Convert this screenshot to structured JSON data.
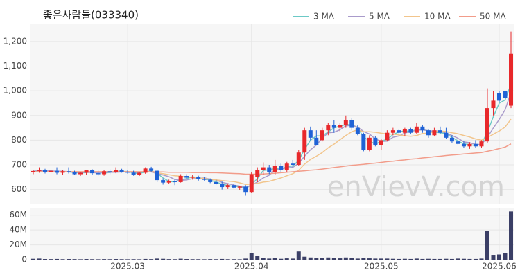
{
  "chart_data": {
    "type": "candlestick",
    "title": "좋은사람들(033340)",
    "watermark": "enVievV.com",
    "categories": [
      null,
      null,
      null,
      null,
      null,
      null,
      null,
      null,
      null,
      null,
      null,
      null,
      null,
      null,
      null,
      null,
      "2025.03",
      null,
      null,
      null,
      null,
      null,
      null,
      null,
      null,
      null,
      null,
      null,
      null,
      null,
      null,
      null,
      null,
      null,
      null,
      null,
      null,
      "2025.04",
      null,
      null,
      null,
      null,
      null,
      null,
      null,
      null,
      null,
      null,
      null,
      null,
      null,
      null,
      null,
      null,
      null,
      null,
      null,
      null,
      null,
      "2025.05",
      null,
      null,
      null,
      null,
      null,
      null,
      null,
      null,
      null,
      null,
      null,
      null,
      null,
      null,
      null,
      null,
      null,
      null,
      null,
      "2025.06",
      null,
      null
    ],
    "open": [
      670,
      675,
      680,
      670,
      676,
      668,
      674,
      670,
      662,
      668,
      678,
      666,
      662,
      674,
      670,
      678,
      672,
      668,
      660,
      668,
      685,
      676,
      638,
      628,
      634,
      630,
      655,
      648,
      652,
      642,
      640,
      630,
      624,
      610,
      618,
      608,
      612,
      590,
      650,
      680,
      690,
      670,
      695,
      680,
      705,
      700,
      750,
      840,
      810,
      800,
      840,
      860,
      850,
      860,
      880,
      850,
      825,
      760,
      810,
      780,
      800,
      830,
      840,
      830,
      845,
      830,
      855,
      840,
      820,
      840,
      830,
      810,
      795,
      785,
      775,
      785,
      775,
      795,
      930,
      990,
      1000,
      940
    ],
    "high": [
      678,
      690,
      684,
      680,
      690,
      678,
      690,
      676,
      672,
      680,
      682,
      680,
      678,
      682,
      690,
      684,
      680,
      676,
      672,
      690,
      692,
      680,
      645,
      640,
      640,
      662,
      662,
      660,
      656,
      652,
      645,
      640,
      632,
      625,
      624,
      614,
      618,
      670,
      690,
      710,
      700,
      720,
      705,
      712,
      720,
      760,
      850,
      855,
      840,
      850,
      870,
      880,
      868,
      900,
      890,
      860,
      830,
      820,
      818,
      805,
      840,
      850,
      845,
      850,
      850,
      870,
      860,
      845,
      850,
      855,
      850,
      820,
      805,
      795,
      792,
      800,
      800,
      1010,
      1000,
      1000,
      1000,
      1240
    ],
    "low": [
      662,
      668,
      665,
      664,
      662,
      660,
      665,
      660,
      655,
      660,
      660,
      655,
      656,
      662,
      666,
      668,
      664,
      656,
      655,
      664,
      672,
      630,
      620,
      622,
      618,
      628,
      642,
      640,
      636,
      636,
      626,
      620,
      600,
      602,
      604,
      598,
      575,
      585,
      630,
      660,
      662,
      660,
      670,
      672,
      690,
      695,
      720,
      800,
      780,
      795,
      820,
      830,
      836,
      850,
      840,
      820,
      755,
      755,
      775,
      760,
      795,
      820,
      825,
      815,
      825,
      825,
      830,
      810,
      815,
      825,
      805,
      790,
      780,
      770,
      765,
      770,
      770,
      790,
      900,
      955,
      960,
      930
    ],
    "close": [
      675,
      680,
      670,
      676,
      668,
      674,
      670,
      662,
      668,
      678,
      666,
      662,
      674,
      670,
      678,
      672,
      668,
      660,
      668,
      685,
      676,
      638,
      628,
      634,
      630,
      655,
      648,
      652,
      642,
      640,
      630,
      624,
      610,
      618,
      608,
      612,
      590,
      662,
      680,
      690,
      670,
      695,
      680,
      705,
      700,
      750,
      840,
      810,
      780,
      840,
      860,
      850,
      860,
      880,
      850,
      825,
      760,
      810,
      780,
      800,
      830,
      840,
      830,
      845,
      830,
      855,
      840,
      820,
      840,
      830,
      810,
      795,
      785,
      775,
      785,
      775,
      795,
      930,
      960,
      960,
      970,
      1150
    ],
    "up_color": "#e8282b",
    "down_color": "#1f62d6",
    "ylim": [
      540,
      1270
    ],
    "yticks": [
      600,
      700,
      800,
      900,
      {
        "value": 1000,
        "label": "1,000"
      },
      {
        "value": 1100,
        "label": "1,100"
      },
      {
        "value": 1200,
        "label": "1,200"
      }
    ],
    "grid": true,
    "legend": "top-right",
    "series": [
      {
        "name": "3 MA",
        "color": "#6cc9c6",
        "values": [
          674,
          676,
          675,
          675,
          671,
          673,
          671,
          669,
          667,
          669,
          671,
          669,
          667,
          669,
          674,
          673,
          673,
          667,
          665,
          671,
          676,
          666,
          647,
          633,
          631,
          640,
          644,
          652,
          647,
          645,
          637,
          631,
          621,
          617,
          612,
          613,
          603,
          621,
          644,
          677,
          680,
          685,
          682,
          693,
          695,
          718,
          763,
          800,
          817,
          817,
          833,
          850,
          857,
          863,
          863,
          852,
          812,
          798,
          783,
          797,
          803,
          823,
          833,
          838,
          835,
          843,
          842,
          838,
          833,
          830,
          827,
          812,
          797,
          785,
          782,
          778,
          785,
          833,
          895,
          950,
          963,
          1027
        ]
      },
      {
        "name": "5 MA",
        "color": "#a99bcb",
        "values": [
          674,
          675,
          675,
          675,
          674,
          674,
          672,
          670,
          670,
          670,
          669,
          667,
          670,
          670,
          670,
          671,
          672,
          670,
          670,
          673,
          671,
          665,
          659,
          652,
          641,
          637,
          639,
          644,
          645,
          647,
          642,
          638,
          629,
          624,
          618,
          614,
          608,
          618,
          630,
          647,
          658,
          679,
          683,
          688,
          690,
          706,
          735,
          761,
          780,
          808,
          830,
          832,
          842,
          858,
          860,
          853,
          835,
          825,
          805,
          795,
          796,
          812,
          817,
          829,
          835,
          840,
          842,
          838,
          837,
          837,
          828,
          819,
          808,
          793,
          790,
          783,
          783,
          812,
          849,
          884,
          923,
          994
        ]
      },
      {
        "name": "10 MA",
        "color": "#f2c58c",
        "values": [
          672,
          672,
          672,
          672,
          672,
          672,
          672,
          672,
          672,
          672,
          672,
          672,
          672,
          672,
          672,
          672,
          672,
          672,
          672,
          672,
          672,
          668,
          664,
          660,
          656,
          654,
          651,
          649,
          646,
          645,
          641,
          639,
          636,
          634,
          632,
          627,
          621,
          622,
          625,
          630,
          633,
          640,
          647,
          656,
          664,
          678,
          703,
          722,
          735,
          750,
          769,
          784,
          802,
          819,
          834,
          842,
          834,
          834,
          832,
          828,
          825,
          824,
          821,
          818,
          816,
          819,
          827,
          828,
          834,
          837,
          835,
          830,
          826,
          819,
          813,
          805,
          800,
          811,
          824,
          837,
          853,
          885
        ]
      },
      {
        "name": "50 MA",
        "color": "#f29c8a",
        "values": [
          672,
          672,
          672,
          672,
          672,
          672,
          672,
          672,
          672,
          672,
          672,
          672,
          672,
          672,
          672,
          672,
          672,
          672,
          672,
          672,
          672,
          671,
          671,
          670,
          670,
          670,
          670,
          669,
          669,
          669,
          668,
          668,
          667,
          666,
          665,
          664,
          662,
          662,
          662,
          663,
          664,
          666,
          668,
          670,
          672,
          674,
          676,
          678,
          680,
          683,
          686,
          689,
          692,
          695,
          698,
          700,
          702,
          705,
          707,
          710,
          713,
          715,
          718,
          720,
          723,
          725,
          728,
          730,
          733,
          735,
          738,
          740,
          742,
          744,
          746,
          748,
          750,
          755,
          760,
          766,
          772,
          785
        ]
      }
    ],
    "volume": {
      "color": "#3b3f66",
      "ylim": [
        0,
        70000000
      ],
      "yticks": [
        {
          "value": 0,
          "label": "0"
        },
        {
          "value": 20000000,
          "label": "20M"
        },
        {
          "value": 40000000,
          "label": "40M"
        },
        {
          "value": 60000000,
          "label": "60M"
        }
      ],
      "values": [
        1200000,
        1500000,
        900000,
        800000,
        1000000,
        700000,
        900000,
        800000,
        600000,
        900000,
        700000,
        600000,
        800000,
        700000,
        900000,
        700000,
        600000,
        700000,
        600000,
        1000000,
        800000,
        1500000,
        1200000,
        800000,
        700000,
        1300000,
        900000,
        700000,
        700000,
        600000,
        800000,
        700000,
        1000000,
        700000,
        700000,
        600000,
        1500000,
        8500000,
        5000000,
        2500000,
        1500000,
        2000000,
        1200000,
        1800000,
        1500000,
        11000000,
        4000000,
        3000000,
        2500000,
        2500000,
        3000000,
        2000000,
        1800000,
        3000000,
        2000000,
        1500000,
        2500000,
        1800000,
        1500000,
        1500000,
        1500000,
        1200000,
        1000000,
        1200000,
        1000000,
        1500000,
        1000000,
        1200000,
        1000000,
        1000000,
        1200000,
        1000000,
        1500000,
        1200000,
        1000000,
        1000000,
        1500000,
        39000000,
        6500000,
        7000000,
        8500000,
        65000000
      ]
    }
  }
}
